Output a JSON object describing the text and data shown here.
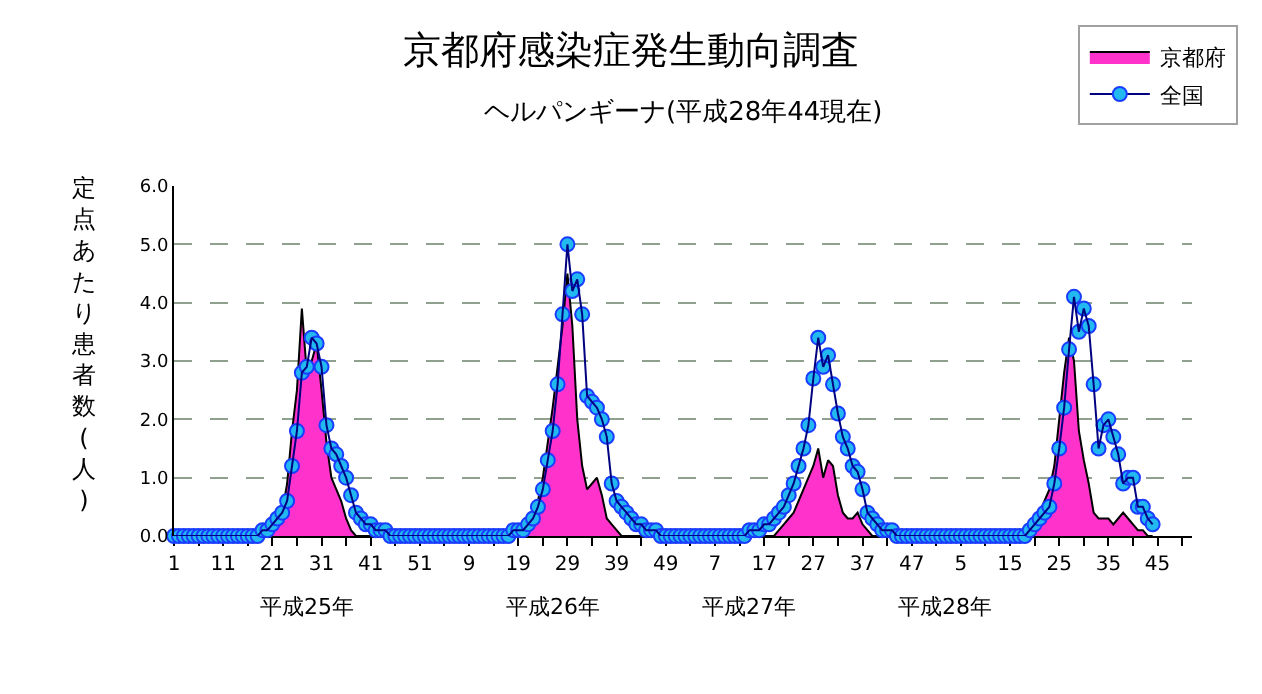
{
  "chart_data": {
    "type": "area",
    "title": "京都府感染症発生動向調査",
    "subtitle": "ヘルパンギーナ(平成28年44現在)",
    "ylabel": "定点あたり患者数(人)",
    "annotations": [
      "平成25年",
      "平成26年",
      "平成27年",
      "平成28年"
    ],
    "categories": [
      "1",
      null,
      null,
      null,
      null,
      null,
      null,
      null,
      null,
      null,
      "11",
      null,
      null,
      null,
      null,
      null,
      null,
      null,
      null,
      null,
      "21",
      null,
      null,
      null,
      null,
      null,
      null,
      null,
      null,
      null,
      "31",
      null,
      null,
      null,
      null,
      null,
      null,
      null,
      null,
      null,
      "41",
      null,
      null,
      null,
      null,
      null,
      null,
      null,
      null,
      null,
      "51",
      null,
      null,
      null,
      null,
      null,
      null,
      null,
      null,
      null,
      "9",
      null,
      null,
      null,
      null,
      null,
      null,
      null,
      null,
      null,
      "19",
      null,
      null,
      null,
      null,
      null,
      null,
      null,
      null,
      null,
      "29",
      null,
      null,
      null,
      null,
      null,
      null,
      null,
      null,
      null,
      "39",
      null,
      null,
      null,
      null,
      null,
      null,
      null,
      null,
      null,
      "49",
      null,
      null,
      null,
      null,
      null,
      null,
      null,
      null,
      null,
      "7",
      null,
      null,
      null,
      null,
      null,
      null,
      null,
      null,
      null,
      "17",
      null,
      null,
      null,
      null,
      null,
      null,
      null,
      null,
      null,
      "27",
      null,
      null,
      null,
      null,
      null,
      null,
      null,
      null,
      null,
      "37",
      null,
      null,
      null,
      null,
      null,
      null,
      null,
      null,
      null,
      "47",
      null,
      null,
      null,
      null,
      null,
      null,
      null,
      null,
      null,
      "5",
      null,
      null,
      null,
      null,
      null,
      null,
      null,
      null,
      null,
      "15",
      null,
      null,
      null,
      null,
      null,
      null,
      null,
      null,
      null,
      "25",
      null,
      null,
      null,
      null,
      null,
      null,
      null,
      null,
      null,
      "35",
      null,
      null,
      null,
      null,
      null,
      null,
      null,
      null,
      null,
      "45",
      null,
      null,
      null,
      null,
      null,
      null,
      null
    ],
    "series": [
      {
        "name": "京都府",
        "color": "#ff33cc",
        "values": [
          0.0,
          0.0,
          0.0,
          0.0,
          0.0,
          0.0,
          0.0,
          0.0,
          0.0,
          0.0,
          0.0,
          0.0,
          0.0,
          0.0,
          0.0,
          0.0,
          0.0,
          0.0,
          0.0,
          0.0,
          0.1,
          0.2,
          0.4,
          0.9,
          1.8,
          2.5,
          3.9,
          2.8,
          3.0,
          3.3,
          2.5,
          1.6,
          1.0,
          0.8,
          0.6,
          0.3,
          0.1,
          0.0,
          0.0,
          0.0,
          0.0,
          0.0,
          0.0,
          0.0,
          0.0,
          0.0,
          0.0,
          0.0,
          0.0,
          0.0,
          0.0,
          0.0,
          0.0,
          0.0,
          0.0,
          0.0,
          0.0,
          0.0,
          0.0,
          0.0,
          0.0,
          0.0,
          0.0,
          0.0,
          0.0,
          0.0,
          0.0,
          0.0,
          0.0,
          0.0,
          0.0,
          0.0,
          0.1,
          0.3,
          0.6,
          1.0,
          1.6,
          2.2,
          2.9,
          3.6,
          4.5,
          3.6,
          2.0,
          1.2,
          0.8,
          0.9,
          1.0,
          0.7,
          0.3,
          0.2,
          0.1,
          0.0,
          0.0,
          0.0,
          0.0,
          0.0,
          0.0,
          0.0,
          0.0,
          0.0,
          0.0,
          0.0,
          0.0,
          0.0,
          0.0,
          0.0,
          0.0,
          0.0,
          0.0,
          0.0,
          0.0,
          0.0,
          0.0,
          0.0,
          0.0,
          0.0,
          0.0,
          0.0,
          0.0,
          0.0,
          0.0,
          0.0,
          0.0,
          0.1,
          0.2,
          0.3,
          0.4,
          0.6,
          0.8,
          1.0,
          1.2,
          1.5,
          1.0,
          1.3,
          1.2,
          0.7,
          0.4,
          0.3,
          0.3,
          0.4,
          0.2,
          0.1,
          0.0,
          0.0,
          0.0,
          0.0,
          0.0,
          0.0,
          0.0,
          0.0,
          0.0,
          0.0,
          0.0,
          0.0,
          0.0,
          0.0,
          0.0,
          0.0,
          0.0,
          0.0,
          0.0,
          0.0,
          0.0,
          0.0,
          0.0,
          0.0,
          0.0,
          0.0,
          0.0,
          0.0,
          0.0,
          0.0,
          0.1,
          0.1,
          0.2,
          0.3,
          0.4,
          0.6,
          0.8,
          1.2,
          2.0,
          2.8,
          3.4,
          3.0,
          1.8,
          1.3,
          0.9,
          0.4,
          0.3,
          0.3,
          0.3,
          0.2,
          0.3,
          0.4,
          0.3,
          0.2,
          0.1,
          0.1,
          0.0,
          0.0,
          null,
          null,
          null,
          null,
          null,
          null,
          null,
          null
        ]
      },
      {
        "name": "全国",
        "type": "line",
        "color": "#22b8f0",
        "marker": "circle",
        "values": [
          0.0,
          0.0,
          0.0,
          0.0,
          0.0,
          0.0,
          0.0,
          0.0,
          0.0,
          0.0,
          0.0,
          0.0,
          0.0,
          0.0,
          0.0,
          0.0,
          0.0,
          0.0,
          0.1,
          0.1,
          0.2,
          0.3,
          0.4,
          0.6,
          1.2,
          1.8,
          2.8,
          2.9,
          3.4,
          3.3,
          2.9,
          1.9,
          1.5,
          1.4,
          1.2,
          1.0,
          0.7,
          0.4,
          0.3,
          0.2,
          0.2,
          0.1,
          0.1,
          0.1,
          0.0,
          0.0,
          0.0,
          0.0,
          0.0,
          0.0,
          0.0,
          0.0,
          0.0,
          0.0,
          0.0,
          0.0,
          0.0,
          0.0,
          0.0,
          0.0,
          0.0,
          0.0,
          0.0,
          0.0,
          0.0,
          0.0,
          0.0,
          0.0,
          0.0,
          0.1,
          0.1,
          0.1,
          0.2,
          0.3,
          0.5,
          0.8,
          1.3,
          1.8,
          2.6,
          3.8,
          5.0,
          4.2,
          4.4,
          3.8,
          2.4,
          2.3,
          2.2,
          2.0,
          1.7,
          0.9,
          0.6,
          0.5,
          0.4,
          0.3,
          0.2,
          0.2,
          0.1,
          0.1,
          0.1,
          0.0,
          0.0,
          0.0,
          0.0,
          0.0,
          0.0,
          0.0,
          0.0,
          0.0,
          0.0,
          0.0,
          0.0,
          0.0,
          0.0,
          0.0,
          0.0,
          0.0,
          0.0,
          0.1,
          0.1,
          0.1,
          0.2,
          0.2,
          0.3,
          0.4,
          0.5,
          0.7,
          0.9,
          1.2,
          1.5,
          1.9,
          2.7,
          3.4,
          2.9,
          3.1,
          2.6,
          2.1,
          1.7,
          1.5,
          1.2,
          1.1,
          0.8,
          0.4,
          0.3,
          0.2,
          0.1,
          0.1,
          0.1,
          0.0,
          0.0,
          0.0,
          0.0,
          0.0,
          0.0,
          0.0,
          0.0,
          0.0,
          0.0,
          0.0,
          0.0,
          0.0,
          0.0,
          0.0,
          0.0,
          0.0,
          0.0,
          0.0,
          0.0,
          0.0,
          0.0,
          0.0,
          0.0,
          0.0,
          0.0,
          0.0,
          0.1,
          0.2,
          0.3,
          0.4,
          0.5,
          0.9,
          1.5,
          2.2,
          3.2,
          4.1,
          3.5,
          3.9,
          3.6,
          2.6,
          1.5,
          1.9,
          2.0,
          1.7,
          1.4,
          0.9,
          1.0,
          1.0,
          0.5,
          0.5,
          0.3,
          0.2,
          null,
          null,
          null,
          null,
          null,
          null,
          null,
          null
        ]
      }
    ],
    "ylim": [
      0,
      6
    ],
    "yticks": [
      {
        "value": 0,
        "label": "0.0"
      },
      {
        "value": 1,
        "label": "1.0"
      },
      {
        "value": 2,
        "label": "2.0"
      },
      {
        "value": 3,
        "label": "3.0"
      },
      {
        "value": 4,
        "label": "4.0"
      },
      {
        "value": 5,
        "label": "5.0"
      },
      {
        "value": 6,
        "label": "6.0"
      }
    ],
    "grid": "y",
    "legend": "top right"
  }
}
